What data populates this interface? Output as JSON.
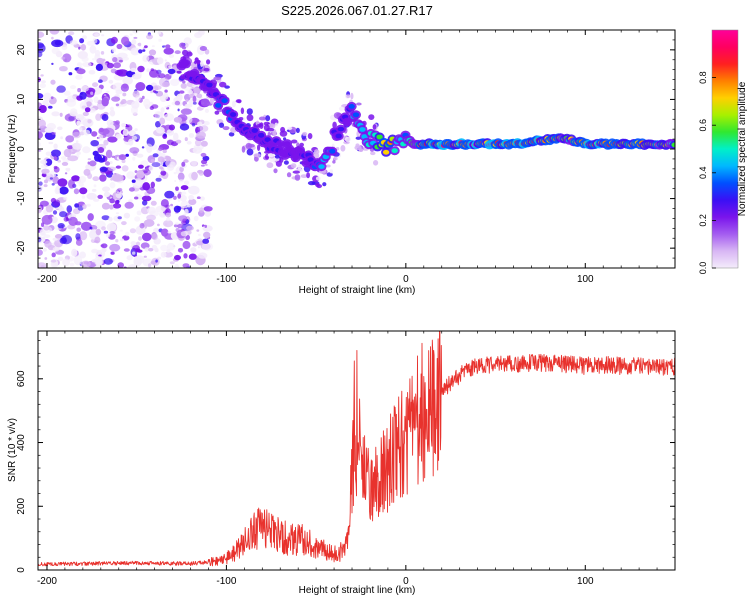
{
  "title": "S225.2026.067.01.27.R17",
  "colors": {
    "snr_line": "#e8322d",
    "axis": "#000000",
    "colormap": [
      "#f4ecfb",
      "#d8b6f4",
      "#a45cf0",
      "#7a14ec",
      "#3a10f5",
      "#0050ff",
      "#00b8ff",
      "#00f0c8",
      "#30e830",
      "#a8f000",
      "#ffd000",
      "#ff8000",
      "#ff2020",
      "#ff0060",
      "#ff0099"
    ]
  },
  "chart_data": [
    {
      "type": "heatmap",
      "title": "",
      "xlabel": "Height of straight line (km)",
      "ylabel": "Frequency (Hz)",
      "xlim": [
        -205,
        150
      ],
      "ylim": [
        -24,
        24
      ],
      "xticks": [
        -200,
        -100,
        0,
        100
      ],
      "xtick_labels": [
        "-200",
        "-100",
        "0",
        "100"
      ],
      "yticks": [
        20,
        10,
        0,
        -10,
        -20
      ],
      "ytick_labels": [
        "20",
        "10",
        "0",
        "-10",
        "-20"
      ],
      "colorbar": {
        "label": "Normalized spectral amplitude",
        "range": [
          0.0,
          1.0
        ],
        "ticks": [
          0.0,
          0.2,
          0.4,
          0.6,
          0.8
        ],
        "tick_labels": [
          "0.0",
          "0.2",
          "0.4",
          "0.6",
          "0.8"
        ]
      },
      "ridge": {
        "height_km": [
          -125,
          -110,
          -100,
          -90,
          -80,
          -70,
          -60,
          -50,
          -45,
          -40,
          -35,
          -30,
          -25,
          -20,
          -15,
          -10,
          -5,
          0,
          5,
          10,
          20,
          40,
          60,
          80,
          90,
          100,
          120,
          150
        ],
        "frequency_hz": [
          17,
          13,
          8,
          4,
          2,
          0,
          -1,
          -3,
          -3,
          2,
          5,
          8,
          3,
          2,
          1,
          0,
          1,
          2,
          1,
          1,
          1,
          1,
          1,
          2,
          2,
          1,
          1,
          1
        ],
        "amplitude": [
          0.25,
          0.3,
          0.35,
          0.3,
          0.3,
          0.25,
          0.25,
          0.3,
          0.5,
          0.3,
          0.3,
          0.35,
          0.45,
          0.55,
          0.6,
          0.8,
          0.5,
          0.45,
          0.55,
          0.8,
          0.9,
          0.9,
          0.9,
          0.85,
          0.6,
          0.85,
          0.8,
          0.6
        ]
      }
    },
    {
      "type": "line",
      "title": "",
      "xlabel": "Height of straight line (km)",
      "ylabel": "SNR (10 * v/v)",
      "xlim": [
        -205,
        150
      ],
      "ylim": [
        0,
        750
      ],
      "xticks": [
        -200,
        -100,
        0,
        100
      ],
      "xtick_labels": [
        "-200",
        "-100",
        "0",
        "100"
      ],
      "yticks": [
        0,
        200,
        400,
        600
      ],
      "ytick_labels": [
        "0",
        "200",
        "400",
        "600"
      ],
      "series": [
        {
          "name": "SNR",
          "x": [
            -205,
            -180,
            -150,
            -120,
            -110,
            -100,
            -95,
            -90,
            -85,
            -80,
            -75,
            -70,
            -65,
            -60,
            -55,
            -50,
            -45,
            -40,
            -35,
            -32,
            -30,
            -28,
            -25,
            -22,
            -20,
            -15,
            -10,
            -5,
            0,
            5,
            10,
            15,
            20,
            25,
            30,
            35,
            40,
            50,
            60,
            70,
            80,
            90,
            100,
            110,
            120,
            130,
            140,
            150
          ],
          "y": [
            18,
            20,
            22,
            20,
            25,
            35,
            60,
            90,
            120,
            130,
            120,
            110,
            100,
            95,
            90,
            70,
            60,
            55,
            60,
            120,
            300,
            400,
            380,
            300,
            250,
            280,
            330,
            380,
            420,
            470,
            500,
            520,
            560,
            590,
            610,
            630,
            640,
            645,
            645,
            650,
            650,
            645,
            640,
            645,
            640,
            640,
            635,
            640
          ]
        }
      ]
    }
  ]
}
